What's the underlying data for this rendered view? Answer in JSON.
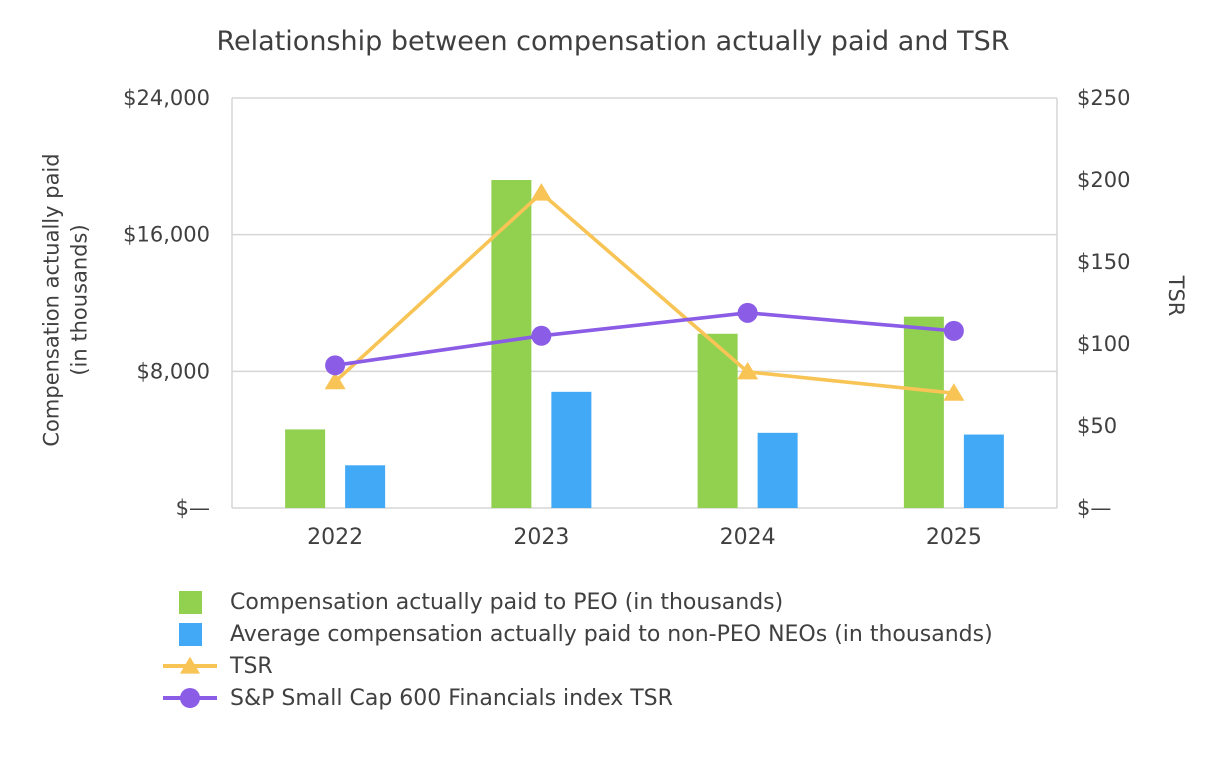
{
  "chart_data": {
    "type": "combo",
    "title": "Relationship between compensation actually paid and TSR",
    "categories": [
      "2022",
      "2023",
      "2024",
      "2025"
    ],
    "left_axis": {
      "label_line1": "Compensation actually paid",
      "label_line2": "(in thousands)",
      "min": 0,
      "max": 24000,
      "ticks": [
        {
          "label": "$24,000",
          "value": 24000
        },
        {
          "label": "$16,000",
          "value": 16000
        },
        {
          "label": "$8,000",
          "value": 8000
        },
        {
          "label": "$—",
          "value": 0
        }
      ]
    },
    "right_axis": {
      "label": "TSR",
      "min": 0,
      "max": 250,
      "ticks": [
        {
          "label": "$250",
          "value": 250
        },
        {
          "label": "$200",
          "value": 200
        },
        {
          "label": "$150",
          "value": 150
        },
        {
          "label": "$100",
          "value": 100
        },
        {
          "label": "$50",
          "value": 50
        },
        {
          "label": "$—",
          "value": 0
        }
      ]
    },
    "series": [
      {
        "name": "Compensation actually paid to PEO (in thousands)",
        "type": "bar",
        "axis": "left",
        "color": "#92D050",
        "values": [
          4600,
          19200,
          10200,
          11200
        ]
      },
      {
        "name": "Average compensation actually paid to non-PEO NEOs (in thousands)",
        "type": "bar",
        "axis": "left",
        "color": "#41A9F5",
        "values": [
          2500,
          6800,
          4400,
          4300
        ]
      },
      {
        "name": "TSR",
        "type": "line",
        "marker": "triangle",
        "axis": "right",
        "color": "#F8C455",
        "values": [
          77,
          192,
          83,
          70
        ]
      },
      {
        "name": "S&P Small Cap 600 Financials index TSR",
        "type": "line",
        "marker": "circle",
        "axis": "right",
        "color": "#8B5CE6",
        "values": [
          87,
          105,
          119,
          108
        ]
      }
    ],
    "grid": true,
    "legend_position": "bottom-left",
    "colors": {
      "grid": "#D6D6D6",
      "text": "#404040"
    }
  }
}
